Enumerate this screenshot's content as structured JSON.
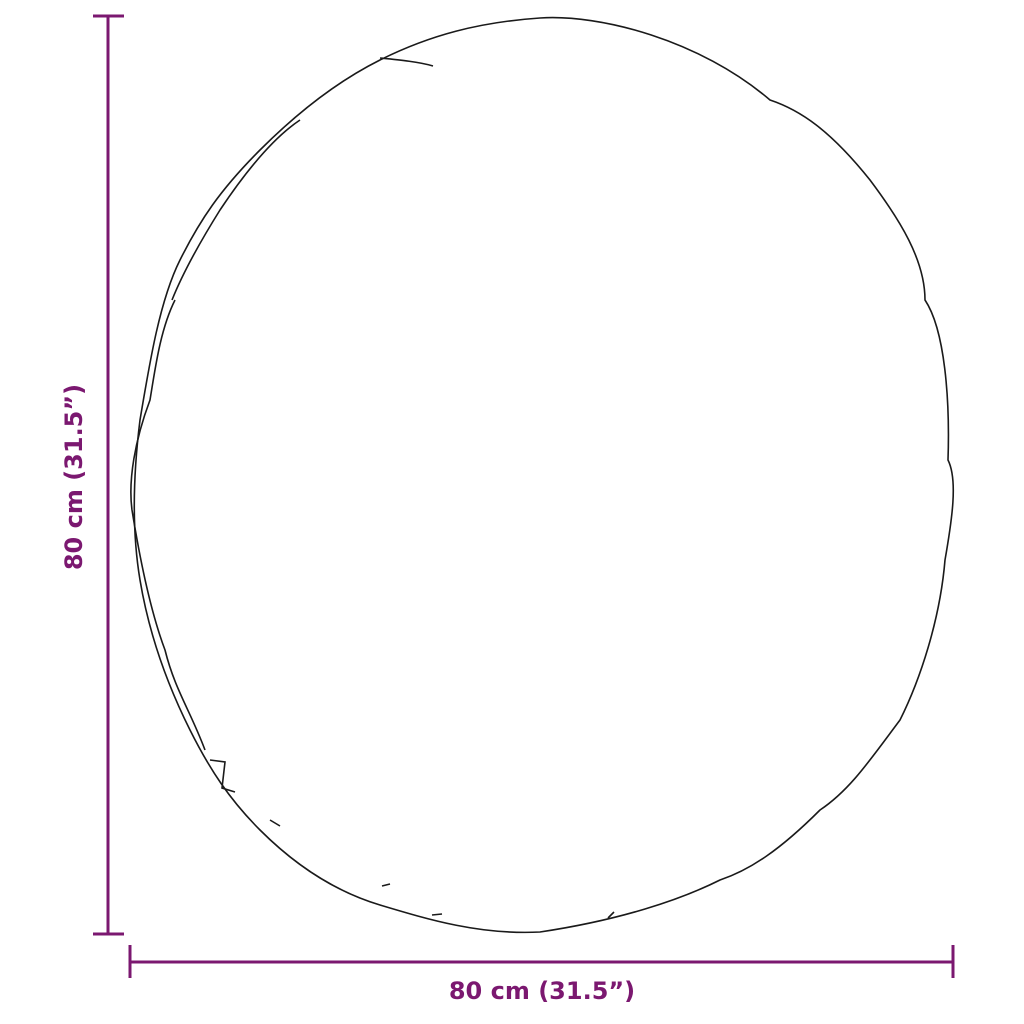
{
  "dimensions": {
    "width_label": "80 cm (31.5”)",
    "height_label": "80 cm (31.5”)"
  },
  "colors": {
    "dimension": "#7b1870",
    "outline": "#1a1a1a"
  },
  "object": "round-mirror-outline"
}
